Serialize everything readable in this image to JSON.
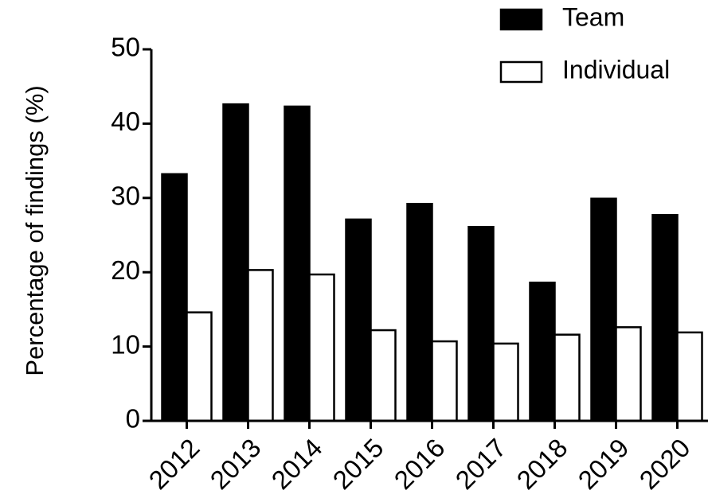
{
  "chart_data": {
    "type": "bar",
    "y_label": "Percentage of findings (%)",
    "categories": [
      "2012",
      "2013",
      "2014",
      "2015",
      "2016",
      "2017",
      "2018",
      "2019",
      "2020"
    ],
    "series": [
      {
        "name": "Team",
        "color": "#000000",
        "values": [
          33.2,
          42.6,
          42.3,
          27.1,
          29.2,
          26.1,
          18.6,
          29.9,
          27.7
        ]
      },
      {
        "name": "Individual",
        "color": "#ffffff",
        "values": [
          14.6,
          20.3,
          19.7,
          12.2,
          10.7,
          10.4,
          11.6,
          12.6,
          11.9
        ]
      }
    ],
    "ylim": [
      0,
      50
    ],
    "yticks": [
      0,
      10,
      20,
      30,
      40,
      50
    ],
    "grid": false,
    "legend": "top-right"
  }
}
